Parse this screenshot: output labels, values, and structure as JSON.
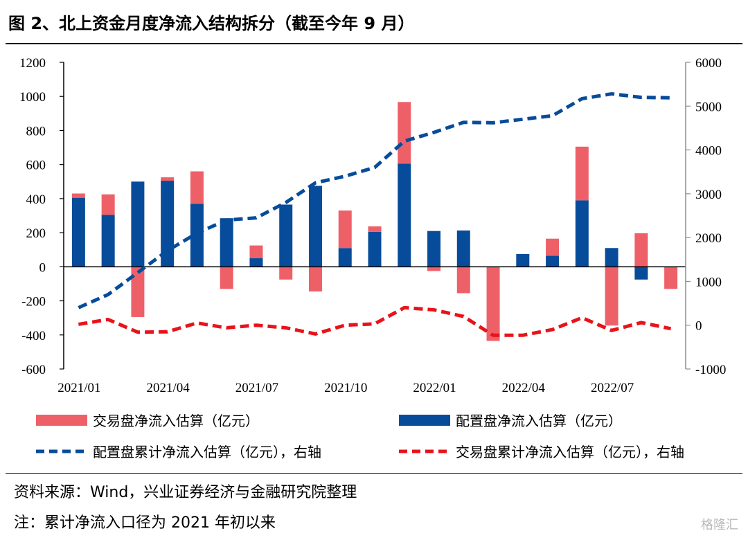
{
  "title": "图 2、北上资金月度净流入结构拆分（截至今年 9 月）",
  "source": "资料来源：Wind，兴业证券经济与金融研究院整理",
  "note": "注：累计净流入口径为 2021 年初以来",
  "watermark": "格隆汇",
  "colors": {
    "trading_bar": "#EE6068",
    "allocation_bar": "#074C9A",
    "allocation_cum": "#074C9A",
    "trading_cum": "#E8131A",
    "axis": "#000000",
    "right_axis": "#8C8C8C"
  },
  "chart_data": {
    "type": "bar",
    "x": [
      "2021/01",
      "2021/02",
      "2021/03",
      "2021/04",
      "2021/05",
      "2021/06",
      "2021/07",
      "2021/08",
      "2021/09",
      "2021/10",
      "2021/11",
      "2021/12",
      "2022/01",
      "2022/02",
      "2022/03",
      "2022/04",
      "2022/05",
      "2022/06",
      "2022/07",
      "2022/08",
      "2022/09"
    ],
    "x_tick_labels": [
      "2021/01",
      "2021/04",
      "2021/07",
      "2021/10",
      "2022/01",
      "2022/04",
      "2022/07"
    ],
    "left_ylim": [
      -600,
      1200
    ],
    "left_yticks": [
      "1200",
      "1000",
      "800",
      "600",
      "400",
      "200",
      "0",
      "-200",
      "-400",
      "-600"
    ],
    "right_ylim": [
      -1000,
      6000
    ],
    "right_yticks": [
      "6000",
      "5000",
      "4000",
      "3000",
      "2000",
      "1000",
      "0",
      "-1000"
    ],
    "series": [
      {
        "name": "配置盘净流入估算（亿元）",
        "kind": "bar",
        "axis": "left",
        "values": [
          405,
          305,
          500,
          505,
          370,
          285,
          50,
          365,
          475,
          110,
          205,
          605,
          210,
          213,
          0,
          75,
          65,
          390,
          110,
          -75,
          0
        ]
      },
      {
        "name": "交易盘净流入估算（亿元）",
        "kind": "bar",
        "axis": "left",
        "values": [
          25,
          120,
          -295,
          20,
          190,
          -130,
          75,
          -75,
          -145,
          220,
          32,
          362,
          -25,
          -155,
          -435,
          0,
          100,
          315,
          -345,
          197,
          -130
        ]
      },
      {
        "name": "配置盘累计净流入估算（亿元），右轴",
        "kind": "line",
        "axis": "right",
        "values": [
          400,
          700,
          1200,
          1700,
          2100,
          2400,
          2450,
          2800,
          3250,
          3400,
          3600,
          4200,
          4400,
          4630,
          4620,
          4700,
          4780,
          5170,
          5280,
          5200,
          5190
        ]
      },
      {
        "name": "交易盘累计净流入估算（亿元），右轴",
        "kind": "line",
        "axis": "right",
        "values": [
          20,
          130,
          -160,
          -150,
          50,
          -60,
          0,
          -60,
          -200,
          0,
          30,
          400,
          350,
          200,
          -230,
          -230,
          -100,
          170,
          -120,
          60,
          -80
        ]
      }
    ],
    "legend_position": "bottom",
    "grid": false
  }
}
